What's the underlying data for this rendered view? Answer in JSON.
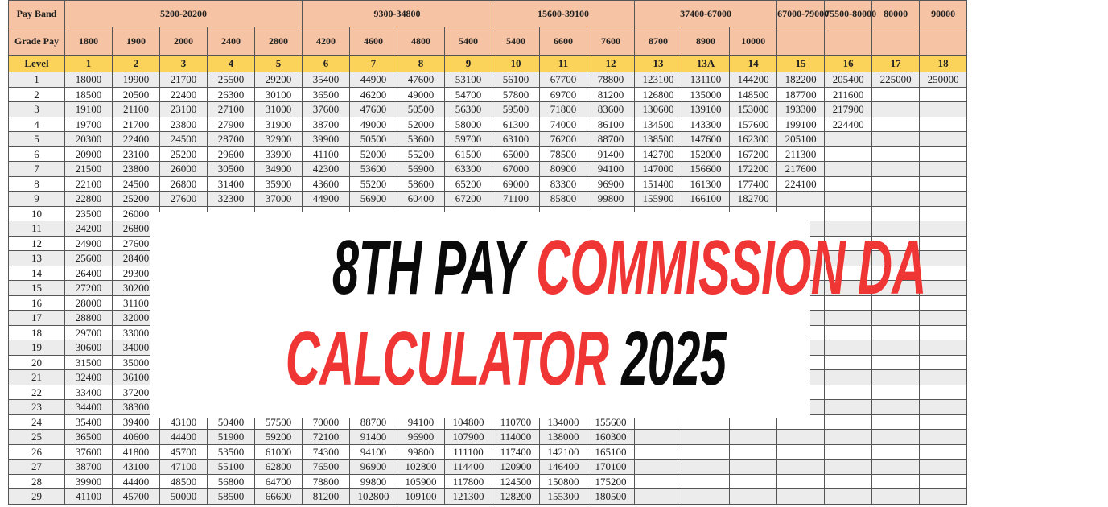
{
  "table": {
    "pay_band_label": "Pay Band",
    "grade_pay_label": "Grade Pay",
    "level_label": "Level",
    "pay_bands": [
      {
        "label": "5200-20200",
        "span": 5
      },
      {
        "label": "9300-34800",
        "span": 4
      },
      {
        "label": "15600-39100",
        "span": 3
      },
      {
        "label": "37400-67000",
        "span": 3
      },
      {
        "label": "67000-79000",
        "span": 1
      },
      {
        "label": "75500-80000",
        "span": 1
      },
      {
        "label": "80000",
        "span": 1
      },
      {
        "label": "90000",
        "span": 1
      }
    ],
    "grade_pay": [
      "1800",
      "1900",
      "2000",
      "2400",
      "2800",
      "4200",
      "4600",
      "4800",
      "5400",
      "5400",
      "6600",
      "7600",
      "8700",
      "8900",
      "10000",
      "",
      "",
      "",
      ""
    ],
    "levels": [
      "1",
      "2",
      "3",
      "4",
      "5",
      "6",
      "7",
      "8",
      "9",
      "10",
      "11",
      "12",
      "13",
      "13A",
      "14",
      "15",
      "16",
      "17",
      "18"
    ],
    "rows": [
      {
        "index": "1",
        "cells": [
          "18000",
          "19900",
          "21700",
          "25500",
          "29200",
          "35400",
          "44900",
          "47600",
          "53100",
          "56100",
          "67700",
          "78800",
          "123100",
          "131100",
          "144200",
          "182200",
          "205400",
          "225000",
          "250000"
        ]
      },
      {
        "index": "2",
        "cells": [
          "18500",
          "20500",
          "22400",
          "26300",
          "30100",
          "36500",
          "46200",
          "49000",
          "54700",
          "57800",
          "69700",
          "81200",
          "126800",
          "135000",
          "148500",
          "187700",
          "211600",
          "",
          ""
        ]
      },
      {
        "index": "3",
        "cells": [
          "19100",
          "21100",
          "23100",
          "27100",
          "31000",
          "37600",
          "47600",
          "50500",
          "56300",
          "59500",
          "71800",
          "83600",
          "130600",
          "139100",
          "153000",
          "193300",
          "217900",
          "",
          ""
        ]
      },
      {
        "index": "4",
        "cells": [
          "19700",
          "21700",
          "23800",
          "27900",
          "31900",
          "38700",
          "49000",
          "52000",
          "58000",
          "61300",
          "74000",
          "86100",
          "134500",
          "143300",
          "157600",
          "199100",
          "224400",
          "",
          ""
        ]
      },
      {
        "index": "5",
        "cells": [
          "20300",
          "22400",
          "24500",
          "28700",
          "32900",
          "39900",
          "50500",
          "53600",
          "59700",
          "63100",
          "76200",
          "88700",
          "138500",
          "147600",
          "162300",
          "205100",
          "",
          "",
          ""
        ]
      },
      {
        "index": "6",
        "cells": [
          "20900",
          "23100",
          "25200",
          "29600",
          "33900",
          "41100",
          "52000",
          "55200",
          "61500",
          "65000",
          "78500",
          "91400",
          "142700",
          "152000",
          "167200",
          "211300",
          "",
          "",
          ""
        ]
      },
      {
        "index": "7",
        "cells": [
          "21500",
          "23800",
          "26000",
          "30500",
          "34900",
          "42300",
          "53600",
          "56900",
          "63300",
          "67000",
          "80900",
          "94100",
          "147000",
          "156600",
          "172200",
          "217600",
          "",
          "",
          ""
        ]
      },
      {
        "index": "8",
        "cells": [
          "22100",
          "24500",
          "26800",
          "31400",
          "35900",
          "43600",
          "55200",
          "58600",
          "65200",
          "69000",
          "83300",
          "96900",
          "151400",
          "161300",
          "177400",
          "224100",
          "",
          "",
          ""
        ]
      },
      {
        "index": "9",
        "cells": [
          "22800",
          "25200",
          "27600",
          "32300",
          "37000",
          "44900",
          "56900",
          "60400",
          "67200",
          "71100",
          "85800",
          "99800",
          "155900",
          "166100",
          "182700",
          "",
          "",
          "",
          ""
        ]
      },
      {
        "index": "10",
        "cells": [
          "23500",
          "26000"
        ]
      },
      {
        "index": "11",
        "cells": [
          "24200",
          "26800"
        ]
      },
      {
        "index": "12",
        "cells": [
          "24900",
          "27600"
        ]
      },
      {
        "index": "13",
        "cells": [
          "25600",
          "28400"
        ]
      },
      {
        "index": "14",
        "cells": [
          "26400",
          "29300"
        ]
      },
      {
        "index": "15",
        "cells": [
          "27200",
          "30200"
        ]
      },
      {
        "index": "16",
        "cells": [
          "28000",
          "31100"
        ]
      },
      {
        "index": "17",
        "cells": [
          "28800",
          "32000"
        ]
      },
      {
        "index": "18",
        "cells": [
          "29700",
          "33000"
        ]
      },
      {
        "index": "19",
        "cells": [
          "30600",
          "34000"
        ]
      },
      {
        "index": "20",
        "cells": [
          "31500",
          "35000"
        ]
      },
      {
        "index": "21",
        "cells": [
          "32400",
          "36100"
        ]
      },
      {
        "index": "22",
        "cells": [
          "33400",
          "37200"
        ]
      },
      {
        "index": "23",
        "cells": [
          "34400",
          "38300"
        ]
      },
      {
        "index": "24",
        "cells": [
          "35400",
          "39400",
          "43100",
          "50400",
          "57500",
          "70000",
          "88700",
          "94100",
          "104800",
          "110700",
          "134000",
          "155600"
        ]
      },
      {
        "index": "25",
        "cells": [
          "36500",
          "40600",
          "44400",
          "51900",
          "59200",
          "72100",
          "91400",
          "96900",
          "107900",
          "114000",
          "138000",
          "160300"
        ]
      },
      {
        "index": "26",
        "cells": [
          "37600",
          "41800",
          "45700",
          "53500",
          "61000",
          "74300",
          "94100",
          "99800",
          "111100",
          "117400",
          "142100",
          "165100"
        ]
      },
      {
        "index": "27",
        "cells": [
          "38700",
          "43100",
          "47100",
          "55100",
          "62800",
          "76500",
          "96900",
          "102800",
          "114400",
          "120900",
          "146400",
          "170100"
        ]
      },
      {
        "index": "28",
        "cells": [
          "39900",
          "44400",
          "48500",
          "56800",
          "64700",
          "78800",
          "99800",
          "105900",
          "117800",
          "124500",
          "150800",
          "175200"
        ]
      },
      {
        "index": "29",
        "cells": [
          "41100",
          "45700",
          "50000",
          "58500",
          "66600",
          "81200",
          "102800",
          "109100",
          "121300",
          "128200",
          "155300",
          "180500"
        ]
      }
    ]
  },
  "banner": {
    "line1_black": "8TH PAY",
    "line1_red": "COMMISSION DA",
    "line2_red": "CALCULATOR",
    "line2_black": "2025"
  },
  "colors": {
    "header_bg": "#f6c3a4",
    "level_row_bg": "#fbd35a",
    "accent_red": "#f03535"
  }
}
